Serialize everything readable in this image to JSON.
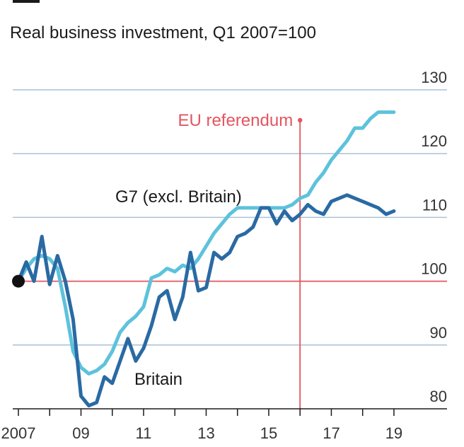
{
  "chart_data": {
    "type": "line",
    "title": "Real business investment, Q1 2007=100",
    "x_ticks": [
      "2007",
      "09",
      "11",
      "13",
      "15",
      "17",
      "19"
    ],
    "y_ticks": [
      "80",
      "90",
      "100",
      "110",
      "120",
      "130"
    ],
    "ylim": [
      80,
      130
    ],
    "xlim": [
      2007.0,
      2019.25
    ],
    "grid": true,
    "baseline_value": 100,
    "annotation": {
      "label": "EU referendum",
      "x": 2016.0
    },
    "colors": {
      "britain": "#2a6aa3",
      "g7": "#5dc2dc",
      "grid": "#a9c1d6",
      "baseline": "#e3565f",
      "annotation": "#e3565f",
      "marker": "#111111"
    },
    "series": [
      {
        "name": "G7 (excl. Britain)",
        "x": [
          2007.0,
          2007.25,
          2007.5,
          2007.75,
          2008.0,
          2008.25,
          2008.5,
          2008.75,
          2009.0,
          2009.25,
          2009.5,
          2009.75,
          2010.0,
          2010.25,
          2010.5,
          2010.75,
          2011.0,
          2011.25,
          2011.5,
          2011.75,
          2012.0,
          2012.25,
          2012.5,
          2012.75,
          2013.0,
          2013.25,
          2013.5,
          2013.75,
          2014.0,
          2014.25,
          2014.5,
          2014.75,
          2015.0,
          2015.25,
          2015.5,
          2015.75,
          2016.0,
          2016.25,
          2016.5,
          2016.75,
          2017.0,
          2017.25,
          2017.5,
          2017.75,
          2018.0,
          2018.25,
          2018.5,
          2018.75,
          2019.0
        ],
        "values": [
          100,
          102,
          103.5,
          104,
          103.5,
          102,
          96,
          89,
          86.5,
          85.5,
          86,
          87,
          89,
          92,
          93.5,
          94.5,
          96,
          100.5,
          101,
          102,
          101.5,
          102.5,
          102,
          103.5,
          105.5,
          107.5,
          109,
          110.5,
          111.5,
          111.5,
          111.5,
          111.5,
          111.5,
          111.5,
          111.5,
          112,
          113,
          113.5,
          115.5,
          117,
          119,
          120.5,
          122,
          124,
          124,
          125.5,
          126.5,
          126.5,
          126.5
        ]
      },
      {
        "name": "Britain",
        "x": [
          2007.0,
          2007.25,
          2007.5,
          2007.75,
          2008.0,
          2008.25,
          2008.5,
          2008.75,
          2009.0,
          2009.25,
          2009.5,
          2009.75,
          2010.0,
          2010.25,
          2010.5,
          2010.75,
          2011.0,
          2011.25,
          2011.5,
          2011.75,
          2012.0,
          2012.25,
          2012.5,
          2012.75,
          2013.0,
          2013.25,
          2013.5,
          2013.75,
          2014.0,
          2014.25,
          2014.5,
          2014.75,
          2015.0,
          2015.25,
          2015.5,
          2015.75,
          2016.0,
          2016.25,
          2016.5,
          2016.75,
          2017.0,
          2017.25,
          2017.5,
          2017.75,
          2018.0,
          2018.25,
          2018.5,
          2018.75,
          2019.0
        ],
        "values": [
          100,
          103,
          100,
          107,
          99.5,
          104,
          100,
          94,
          82,
          80.5,
          81,
          85,
          84,
          87.5,
          91,
          87.5,
          89.5,
          93,
          97.5,
          98.5,
          94,
          97.5,
          104.5,
          98.5,
          99,
          104.5,
          103.5,
          104.5,
          107,
          107.5,
          108.5,
          111.5,
          111.5,
          109,
          111,
          109.5,
          110.5,
          112,
          111,
          110.5,
          112.5,
          113,
          113.5,
          113,
          112.5,
          112,
          111.5,
          110.5,
          111
        ]
      }
    ]
  }
}
